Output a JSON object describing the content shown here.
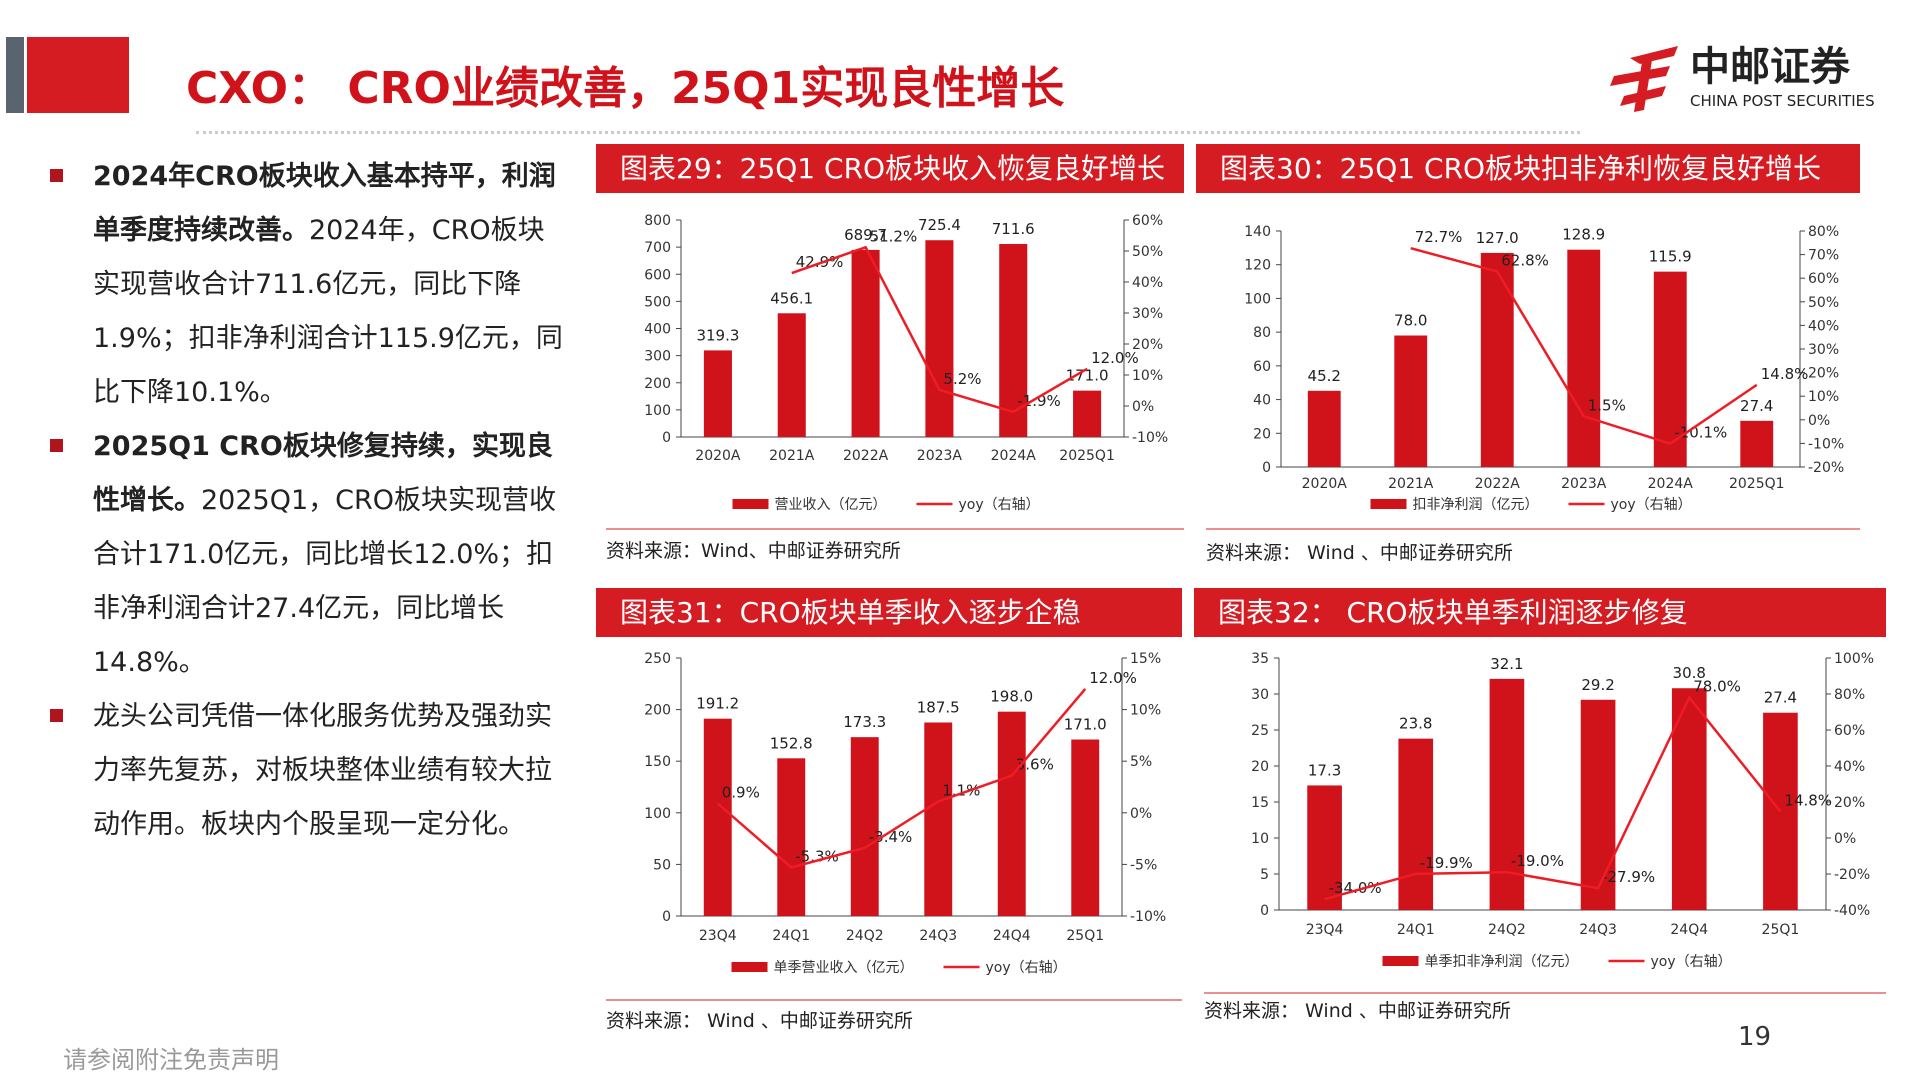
{
  "header": {
    "title": "CXO： CRO业绩改善，25Q1实现良性增长"
  },
  "logo": {
    "name": "中邮证券",
    "english": "CHINA POST SECURITIES"
  },
  "bullets": [
    {
      "bold": "2024年CRO板块收入基本持平，利润单季度持续改善。",
      "text": "2024年，CRO板块实现营收合计711.6亿元，同比下降1.9%；扣非净利润合计115.9亿元，同比下降10.1%。"
    },
    {
      "bold": "2025Q1 CRO板块修复持续，实现良性增长。",
      "text": "2025Q1，CRO板块实现营收合计171.0亿元，同比增长12.0%；扣非净利润合计27.4亿元，同比增长14.8%。"
    },
    {
      "text": "龙头公司凭借一体化服务优势及强劲实力率先复苏，对板块整体业绩有较大拉动作用。板块内个股呈现一定分化。"
    }
  ],
  "chart_data": [
    {
      "type": "bar",
      "title": "图表29：25Q1 CRO板块收入恢复良好增长",
      "categories": [
        "2020A",
        "2021A",
        "2022A",
        "2023A",
        "2024A",
        "2025Q1"
      ],
      "series": [
        {
          "name": "营业收入（亿元）",
          "type": "bar",
          "color": "#d0121b",
          "values": [
            319.3,
            456.1,
            689.7,
            725.4,
            711.6,
            171.0
          ],
          "value_labels": [
            "319.3",
            "456.1",
            "689.7",
            "725.4",
            "711.6",
            "171.0"
          ]
        },
        {
          "name": "yoy（右轴）",
          "type": "line",
          "axis": "y2",
          "color": "#ee1c25",
          "values": [
            null,
            42.9,
            51.2,
            5.2,
            -1.9,
            12.0
          ],
          "value_labels": [
            null,
            "42.9%",
            "51.2%",
            "5.2%",
            "-1.9%",
            "12.0%"
          ]
        }
      ],
      "ylim": [
        0,
        800
      ],
      "yticks": [
        0,
        100,
        200,
        300,
        400,
        500,
        600,
        700,
        800
      ],
      "y2lim": [
        -10,
        60
      ],
      "y2ticks": [
        {
          "value": -10,
          "label": "-10%"
        },
        {
          "value": 0,
          "label": "0%"
        },
        {
          "value": 10,
          "label": "10%"
        },
        {
          "value": 20,
          "label": "20%"
        },
        {
          "value": 30,
          "label": "30%"
        },
        {
          "value": 40,
          "label": "40%"
        },
        {
          "value": 50,
          "label": "50%"
        },
        {
          "value": 60,
          "label": "60%"
        }
      ],
      "source": "资料来源：Wind、中邮证券研究所"
    },
    {
      "type": "bar",
      "title": "图表30：25Q1 CRO板块扣非净利恢复良好增长",
      "categories": [
        "2020A",
        "2021A",
        "2022A",
        "2023A",
        "2024A",
        "2025Q1"
      ],
      "series": [
        {
          "name": "扣非净利润（亿元）",
          "type": "bar",
          "color": "#d0121b",
          "values": [
            45.2,
            78.0,
            127.0,
            128.9,
            115.9,
            27.4
          ],
          "value_labels": [
            "45.2",
            "78.0",
            "127.0",
            "128.9",
            "115.9",
            "27.4"
          ]
        },
        {
          "name": "yoy（右轴）",
          "type": "line",
          "axis": "y2",
          "color": "#ee1c25",
          "values": [
            null,
            72.7,
            62.8,
            1.5,
            -10.1,
            14.8
          ],
          "value_labels": [
            null,
            "72.7%",
            "62.8%",
            "1.5%",
            "-10.1%",
            "14.8%"
          ]
        }
      ],
      "ylim": [
        0,
        140
      ],
      "yticks": [
        0,
        20,
        40,
        60,
        80,
        100,
        120,
        140
      ],
      "y2lim": [
        -20,
        80
      ],
      "y2ticks": [
        {
          "value": -20,
          "label": "-20%"
        },
        {
          "value": -10,
          "label": "-10%"
        },
        {
          "value": 0,
          "label": "0%"
        },
        {
          "value": 10,
          "label": "10%"
        },
        {
          "value": 20,
          "label": "20%"
        },
        {
          "value": 30,
          "label": "30%"
        },
        {
          "value": 40,
          "label": "40%"
        },
        {
          "value": 50,
          "label": "50%"
        },
        {
          "value": 60,
          "label": "60%"
        },
        {
          "value": 70,
          "label": "70%"
        },
        {
          "value": 80,
          "label": "80%"
        }
      ],
      "source": "资料来源： Wind 、中邮证券研究所"
    },
    {
      "type": "bar",
      "title": "图表31：CRO板块单季收入逐步企稳",
      "categories": [
        "23Q4",
        "24Q1",
        "24Q2",
        "24Q3",
        "24Q4",
        "25Q1"
      ],
      "series": [
        {
          "name": "单季营业收入（亿元）",
          "type": "bar",
          "color": "#d0121b",
          "values": [
            191.2,
            152.8,
            173.3,
            187.5,
            198.0,
            171.0
          ],
          "value_labels": [
            "191.2",
            "152.8",
            "173.3",
            "187.5",
            "198.0",
            "171.0"
          ]
        },
        {
          "name": "yoy（右轴）",
          "type": "line",
          "axis": "y2",
          "color": "#ee1c25",
          "values": [
            0.9,
            -5.3,
            -3.4,
            1.1,
            3.6,
            12.0
          ],
          "value_labels": [
            "0.9%",
            "-5.3%",
            "-3.4%",
            "1.1%",
            "3.6%",
            "12.0%"
          ]
        }
      ],
      "ylim": [
        0,
        250
      ],
      "yticks": [
        0,
        50,
        100,
        150,
        200,
        250
      ],
      "y2lim": [
        -10,
        15
      ],
      "y2ticks": [
        {
          "value": -10,
          "label": "-10%"
        },
        {
          "value": -5,
          "label": "-5%"
        },
        {
          "value": 0,
          "label": "0%"
        },
        {
          "value": 5,
          "label": "5%"
        },
        {
          "value": 10,
          "label": "10%"
        },
        {
          "value": 15,
          "label": "15%"
        }
      ],
      "source": "资料来源： Wind 、中邮证券研究所"
    },
    {
      "type": "bar",
      "title": "图表32： CRO板块单季利润逐步修复",
      "categories": [
        "23Q4",
        "24Q1",
        "24Q2",
        "24Q3",
        "24Q4",
        "25Q1"
      ],
      "series": [
        {
          "name": "单季扣非净利润（亿元）",
          "type": "bar",
          "color": "#d0121b",
          "values": [
            17.3,
            23.8,
            32.1,
            29.2,
            30.8,
            27.4
          ],
          "value_labels": [
            "17.3",
            "23.8",
            "32.1",
            "29.2",
            "30.8",
            "27.4"
          ]
        },
        {
          "name": "yoy（右轴）",
          "type": "line",
          "axis": "y2",
          "color": "#ee1c25",
          "values": [
            -34.0,
            -19.9,
            -19.0,
            -27.9,
            78.0,
            14.8
          ],
          "value_labels": [
            "-34.0%",
            "-19.9%",
            "-19.0%",
            "-27.9%",
            "78.0%",
            "14.8%"
          ]
        }
      ],
      "ylim": [
        0,
        35
      ],
      "yticks": [
        0,
        5,
        10,
        15,
        20,
        25,
        30,
        35
      ],
      "y2lim": [
        -40,
        100
      ],
      "y2ticks": [
        {
          "value": -40,
          "label": "-40%"
        },
        {
          "value": -20,
          "label": "-20%"
        },
        {
          "value": 0,
          "label": "0%"
        },
        {
          "value": 20,
          "label": "20%"
        },
        {
          "value": 40,
          "label": "40%"
        },
        {
          "value": 60,
          "label": "60%"
        },
        {
          "value": 80,
          "label": "80%"
        },
        {
          "value": 100,
          "label": "100%"
        }
      ],
      "source": "资料来源： Wind 、中邮证券研究所"
    }
  ],
  "footer": {
    "disclaimer": "请参阅附注免责声明",
    "page": "19"
  }
}
